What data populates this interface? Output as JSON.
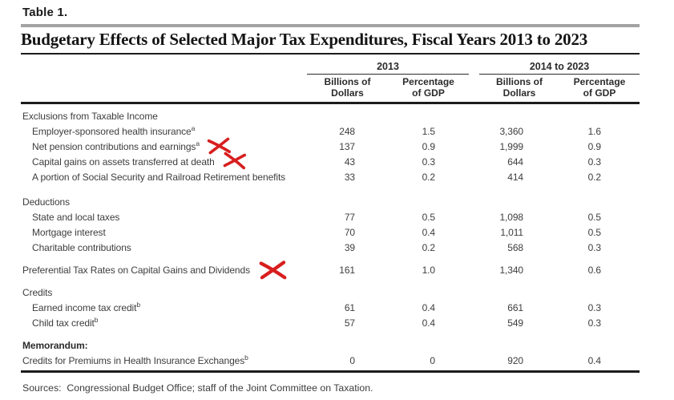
{
  "page": {
    "table_label": "Table 1.",
    "title": "Budgetary Effects of Selected Major Tax Expenditures, Fiscal Years 2013 to 2023",
    "sources": "Sources:  Congressional Budget Office; staff of the Joint Committee on Taxation."
  },
  "header": {
    "groups": [
      {
        "label": "2013",
        "columns": [
          {
            "line1": "Billions of",
            "line2": "Dollars"
          },
          {
            "line1": "Percentage",
            "line2": "of GDP"
          }
        ]
      },
      {
        "label": "2014 to 2023",
        "columns": [
          {
            "line1": "Billions of",
            "line2": "Dollars"
          },
          {
            "line1": "Percentage",
            "line2": "of GDP"
          }
        ]
      }
    ]
  },
  "rows": [
    {
      "type": "section",
      "label": "Exclusions from Taxable Income",
      "values": [
        "",
        "",
        "",
        ""
      ]
    },
    {
      "type": "item",
      "label": "Employer-sponsored health insurance",
      "sup": "a",
      "values": [
        "248",
        "1.5",
        "3,360",
        "1.6"
      ]
    },
    {
      "type": "item",
      "label": "Net pension contributions and earnings",
      "sup": "a",
      "xmark": true,
      "xmark_variant": 1,
      "values": [
        "137",
        "0.9",
        "1,999",
        "0.9"
      ]
    },
    {
      "type": "item",
      "label": "Capital gains on assets transferred at death",
      "xmark": true,
      "xmark_variant": 2,
      "values": [
        "43",
        "0.3",
        "644",
        "0.3"
      ]
    },
    {
      "type": "item",
      "label": "A portion of Social Security and Railroad Retirement benefits",
      "values": [
        "33",
        "0.2",
        "414",
        "0.2"
      ]
    },
    {
      "type": "spacer",
      "size": "lg"
    },
    {
      "type": "section",
      "label": "Deductions",
      "values": [
        "",
        "",
        "",
        ""
      ]
    },
    {
      "type": "item",
      "label": "State and local taxes",
      "values": [
        "77",
        "0.5",
        "1,098",
        "0.5"
      ]
    },
    {
      "type": "item",
      "label": "Mortgage interest",
      "values": [
        "70",
        "0.4",
        "1,011",
        "0.5"
      ]
    },
    {
      "type": "item",
      "label": "Charitable contributions",
      "values": [
        "39",
        "0.2",
        "568",
        "0.3"
      ]
    },
    {
      "type": "spacer"
    },
    {
      "type": "standalone",
      "label": "Preferential Tax Rates on Capital Gains and Dividends",
      "xmark": true,
      "xmark_variant": 3,
      "values": [
        "161",
        "1.0",
        "1,340",
        "0.6"
      ]
    },
    {
      "type": "spacer"
    },
    {
      "type": "section",
      "label": "Credits",
      "values": [
        "",
        "",
        "",
        ""
      ]
    },
    {
      "type": "item",
      "label": "Earned income tax credit",
      "sup": "b",
      "values": [
        "61",
        "0.4",
        "661",
        "0.3"
      ]
    },
    {
      "type": "item",
      "label": "Child tax credit",
      "sup": "b",
      "values": [
        "57",
        "0.4",
        "549",
        "0.3"
      ]
    },
    {
      "type": "spacer"
    },
    {
      "type": "memo",
      "label": "Memorandum:",
      "values": [
        "",
        "",
        "",
        ""
      ]
    },
    {
      "type": "standalone",
      "label": "Credits for Premiums in Health Insurance Exchanges",
      "sup": "b",
      "values": [
        "0",
        "0",
        "920",
        "0.4"
      ]
    }
  ],
  "annotations": {
    "x_mark_color": "#d81e1e",
    "x_marked_rows": [
      "Net pension contributions and earnings",
      "Capital gains on assets transferred at death",
      "Preferential Tax Rates on Capital Gains and Dividends"
    ]
  },
  "colors": {
    "text": "#3d3d3d",
    "title": "#141414",
    "rule": "#1c1c1c",
    "gray_bar": "#a3a3a3",
    "annotation_red": "#d81e1e"
  }
}
